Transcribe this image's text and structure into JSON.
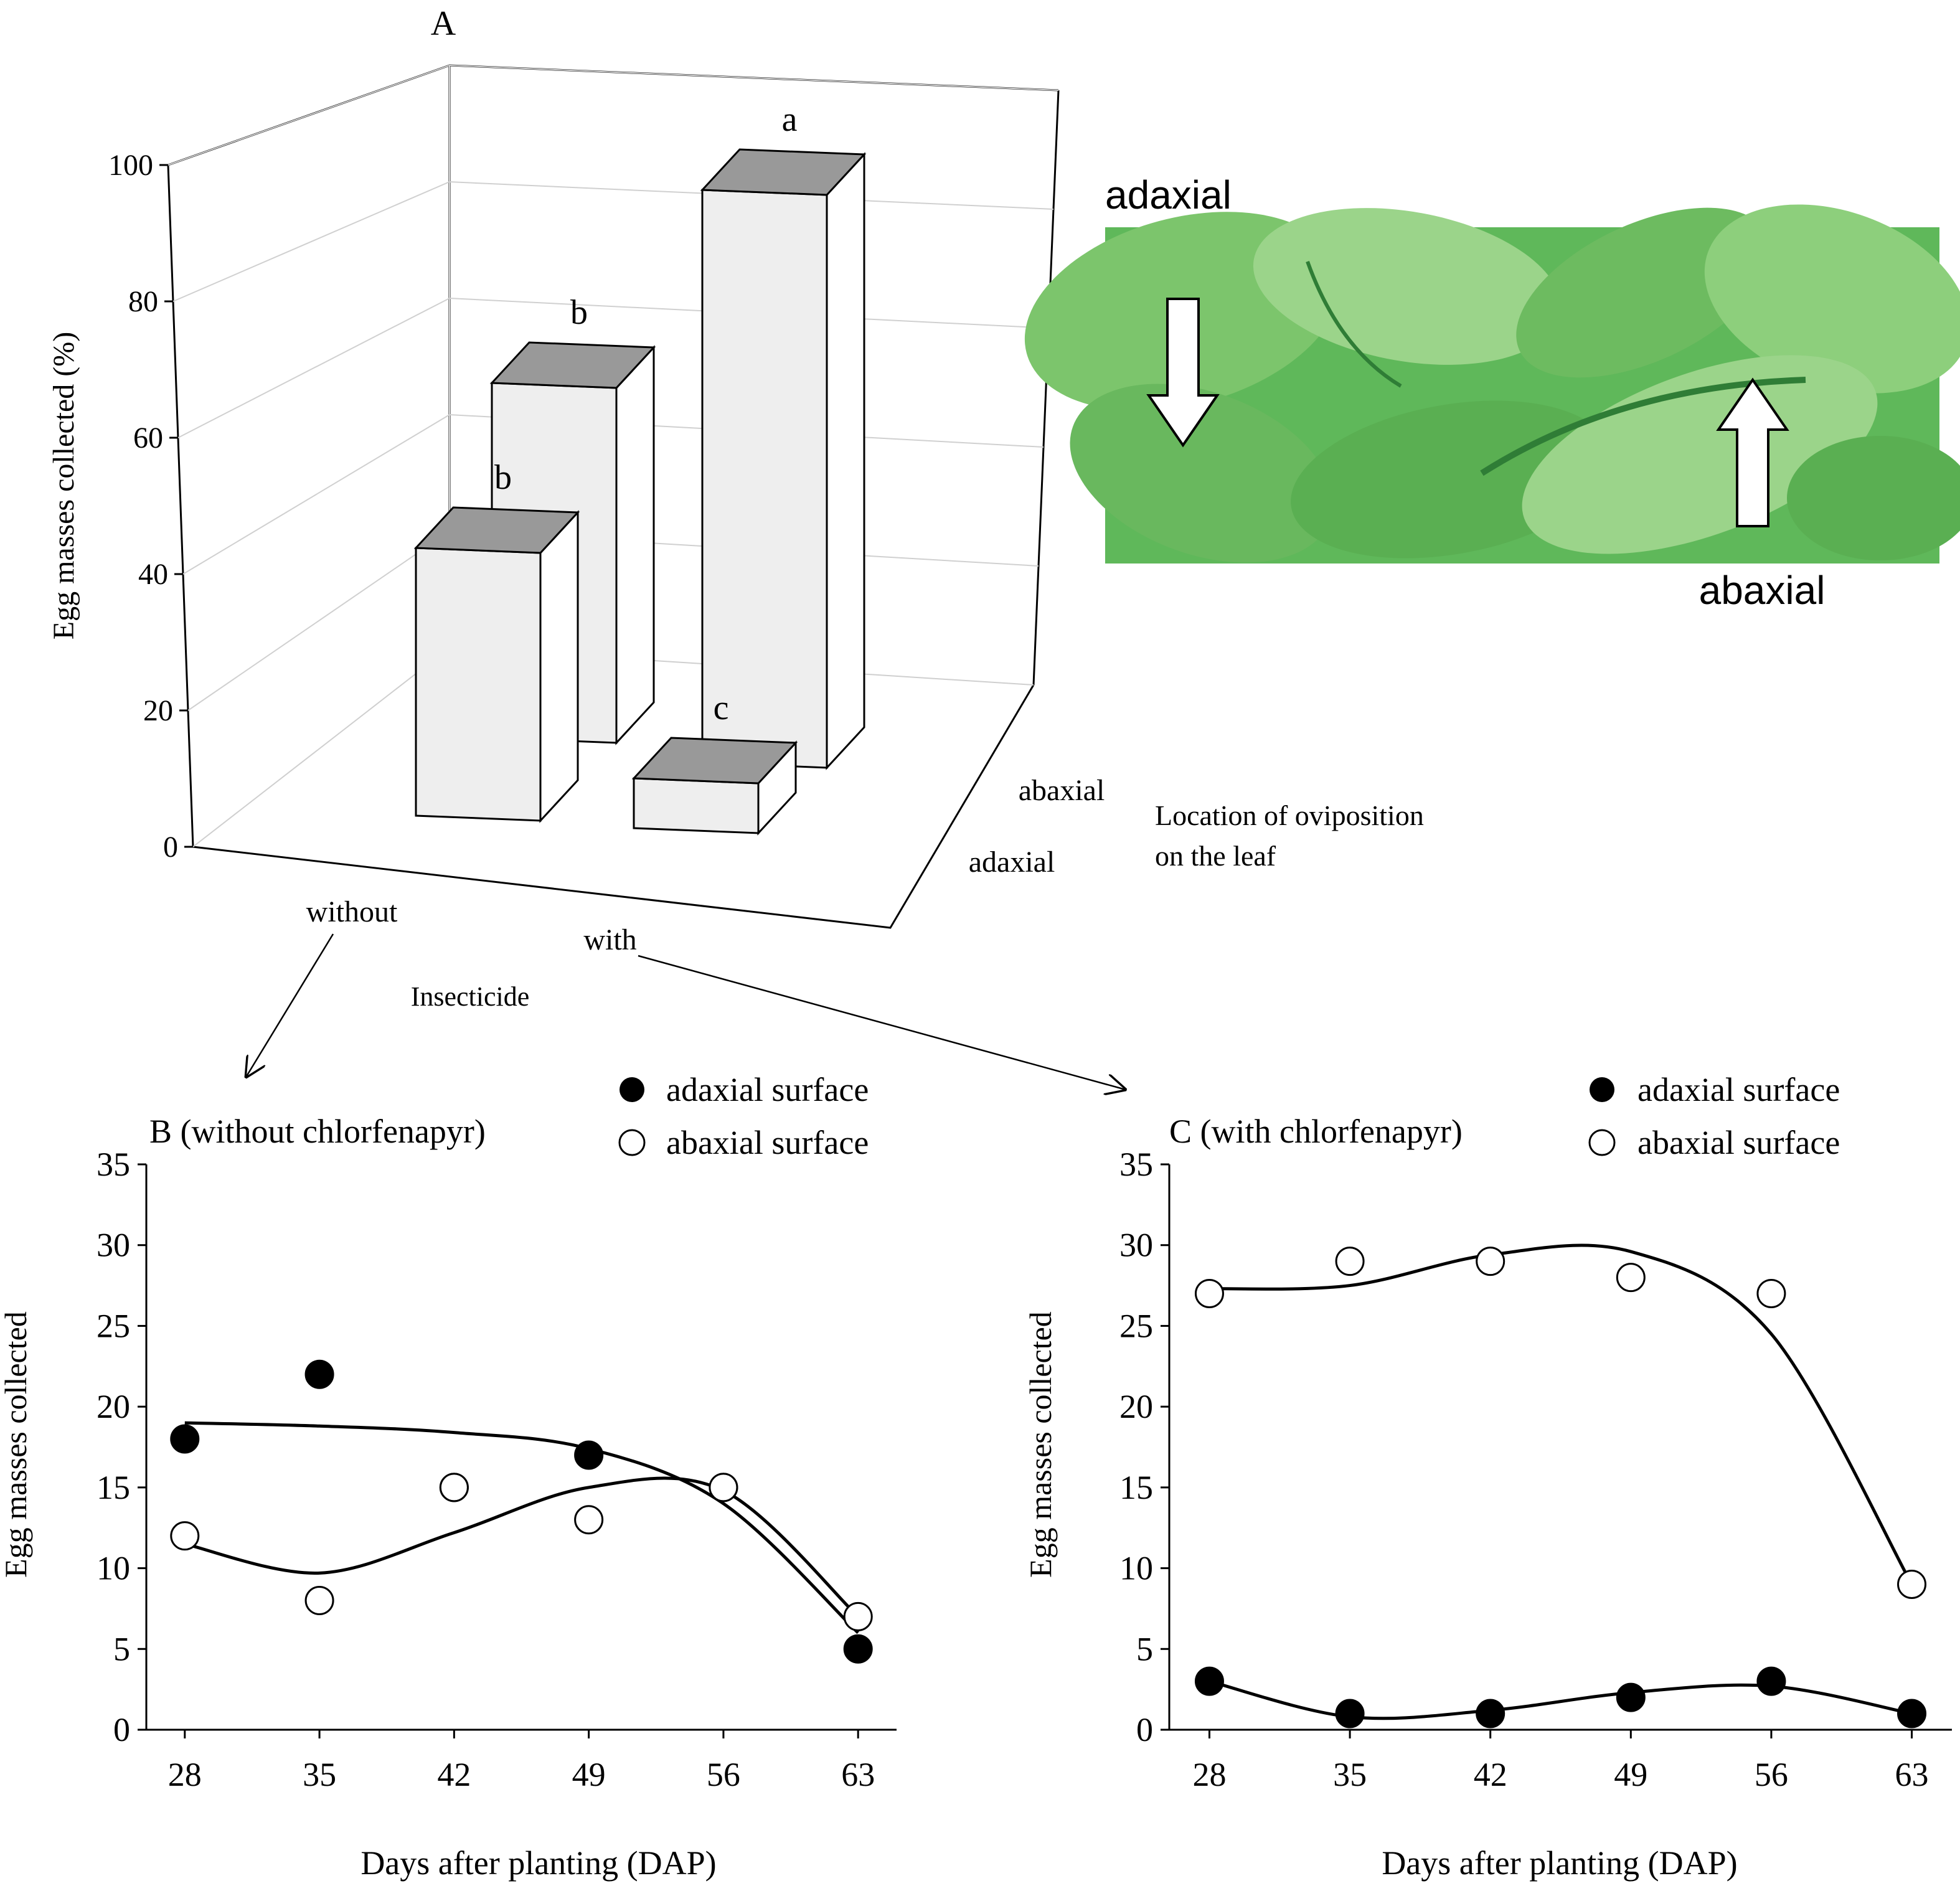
{
  "panel_a": {
    "letter": "A",
    "ylabel": "Egg masses collected (%)",
    "y_ticks": [
      "0",
      "20",
      "40",
      "60",
      "80",
      "100"
    ],
    "x_title": "Insecticide",
    "x_categories": [
      "without",
      "with"
    ],
    "depth_title_line1": "Location of oviposition",
    "depth_title_line2": "on the leaf",
    "depth_categories": [
      "adaxial",
      "abaxial"
    ],
    "photo": {
      "label_top": "adaxial",
      "label_bottom": "abaxial",
      "leaf_color": "#5fb85a",
      "leaf_highlight": "#9bd48a",
      "leaf_shadow": "#2f7d36"
    }
  },
  "panel_b": {
    "title": "B (without chlorfenapyr)",
    "ylabel": "Egg masses collected",
    "xlabel": "Days after planting (DAP)",
    "legend_adaxial": "adaxial surface",
    "legend_abaxial": "abaxial surface",
    "y_ticks": [
      "0",
      "5",
      "10",
      "15",
      "20",
      "25",
      "30",
      "35"
    ],
    "x_ticks": [
      "28",
      "35",
      "42",
      "49",
      "56",
      "63"
    ]
  },
  "panel_c": {
    "title": "C (with chlorfenapyr)",
    "ylabel": "Egg masses collected",
    "xlabel": "Days after planting (DAP)",
    "legend_adaxial": "adaxial surface",
    "legend_abaxial": "abaxial surface",
    "y_ticks": [
      "0",
      "5",
      "10",
      "15",
      "20",
      "25",
      "30",
      "35"
    ],
    "x_ticks": [
      "28",
      "35",
      "42",
      "49",
      "56",
      "63"
    ]
  },
  "chart_data": [
    {
      "id": "A",
      "type": "bar",
      "title": "A",
      "ylabel": "Egg masses collected (%)",
      "xlabel": "Insecticide",
      "zlabel": "Location of oviposition on the leaf",
      "ylim": [
        0,
        100
      ],
      "categories": [
        "without",
        "with"
      ],
      "series": [
        {
          "name": "adaxial",
          "values": [
            43,
            8
          ]
        },
        {
          "name": "abaxial",
          "values": [
            57,
            92
          ]
        }
      ],
      "letters": {
        "adaxial": [
          "b",
          "c"
        ],
        "abaxial": [
          "b",
          "a"
        ]
      },
      "colors": {
        "front": "#eeeeee",
        "side": "#ffffff",
        "top": "#999999"
      }
    },
    {
      "id": "B",
      "type": "scatter",
      "title": "B (without chlorfenapyr)",
      "xlabel": "Days after planting (DAP)",
      "ylabel": "Egg masses collected",
      "ylim": [
        0,
        35
      ],
      "xlim": [
        26,
        65
      ],
      "x": [
        28,
        35,
        42,
        49,
        56,
        63
      ],
      "series": [
        {
          "name": "adaxial surface",
          "marker": "filled",
          "values": [
            18,
            22,
            15,
            17,
            15,
            5
          ],
          "fit": [
            [
              28,
              19
            ],
            [
              35,
              18.8
            ],
            [
              42,
              18.4
            ],
            [
              49,
              17.4
            ],
            [
              56,
              14
            ],
            [
              63,
              6
            ]
          ]
        },
        {
          "name": "abaxial surface",
          "marker": "open",
          "values": [
            12,
            8,
            15,
            13,
            15,
            7
          ],
          "fit": [
            [
              28,
              11.5
            ],
            [
              35,
              9.7
            ],
            [
              42,
              12.2
            ],
            [
              49,
              15
            ],
            [
              56,
              14.8
            ],
            [
              63,
              7
            ]
          ]
        }
      ]
    },
    {
      "id": "C",
      "type": "scatter",
      "title": "C (with chlorfenapyr)",
      "xlabel": "Days after planting (DAP)",
      "ylabel": "Egg masses collected",
      "ylim": [
        0,
        35
      ],
      "xlim": [
        26,
        65
      ],
      "x": [
        28,
        35,
        42,
        49,
        56,
        63
      ],
      "series": [
        {
          "name": "adaxial surface",
          "marker": "filled",
          "values": [
            3,
            1,
            1,
            2,
            3,
            1
          ],
          "fit": [
            [
              28,
              3
            ],
            [
              35,
              0.8
            ],
            [
              42,
              1.2
            ],
            [
              49,
              2.3
            ],
            [
              56,
              2.7
            ],
            [
              63,
              1
            ]
          ]
        },
        {
          "name": "abaxial surface",
          "marker": "open",
          "values": [
            27,
            29,
            29,
            28,
            27,
            9
          ],
          "fit": [
            [
              28,
              27.3
            ],
            [
              35,
              27.5
            ],
            [
              42,
              29.4
            ],
            [
              49,
              29.6
            ],
            [
              56,
              24.5
            ],
            [
              63,
              9
            ]
          ]
        }
      ]
    }
  ]
}
